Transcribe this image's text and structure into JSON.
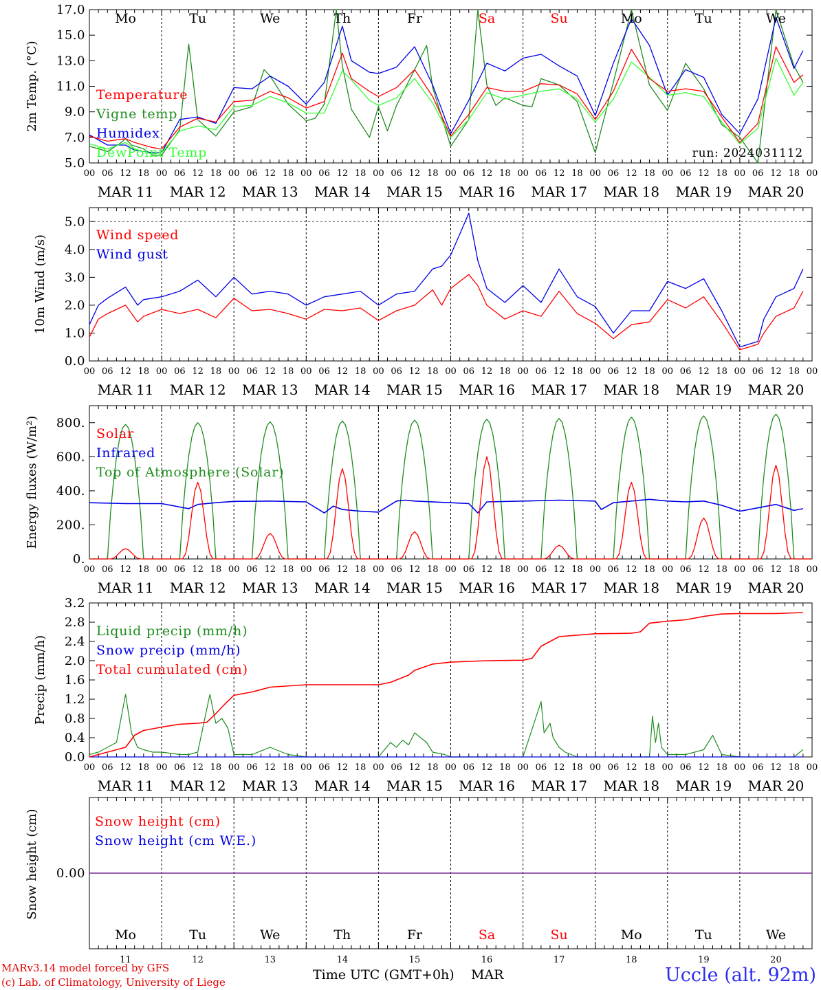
{
  "colors": {
    "red": "#ff0000",
    "green": "#1e8c1e",
    "blue": "#0000e6",
    "lightgreen": "#33ff33",
    "purple": "#7b2a9a",
    "axis": "#000000",
    "footer_red": "#e60000",
    "station_blue": "#2d2df0"
  },
  "days": {
    "dates": [
      "MAR 11",
      "MAR 12",
      "MAR 13",
      "MAR 14",
      "MAR 15",
      "MAR 16",
      "MAR 17",
      "MAR 18",
      "MAR 19",
      "MAR 20"
    ],
    "weekdays": [
      "Mo",
      "Tu",
      "We",
      "Th",
      "Fr",
      "Sa",
      "Su",
      "Mo",
      "Tu",
      "We"
    ],
    "weekend_index": [
      5,
      6
    ],
    "day_numbers": [
      "11",
      "12",
      "13",
      "14",
      "15",
      "16",
      "17",
      "18",
      "19",
      "20"
    ],
    "hour_labels": [
      "00",
      "06",
      "12",
      "18"
    ],
    "end_hour_label": "00"
  },
  "run_label": "run: 2024031112",
  "footer": {
    "model_line": "MARv3.14 model forced by GFS",
    "lab_line": "(c) Lab. of Climatology, University of Liege",
    "time_axis": "Time UTC (GMT+0h)",
    "month": "MAR",
    "station": "Uccle (alt. 92m)"
  },
  "chart_data": [
    {
      "type": "line",
      "ylabel": "2m Temp. (°C)",
      "ylim": [
        5.0,
        17.0
      ],
      "yticks": [
        "5.0",
        "7.0",
        "9.0",
        "11.0",
        "13.0",
        "15.0",
        "17.0"
      ],
      "x_unit": "hours since 2024-03-11 00 UTC",
      "legend": [
        "Temperature",
        "Vigne temp",
        "Humidex",
        "DewPoint Temp"
      ],
      "series": [
        {
          "name": "Temperature",
          "color": "red",
          "x": [
            0,
            6,
            12,
            15,
            21,
            24,
            30,
            36,
            42,
            48,
            54,
            60,
            66,
            72,
            78,
            84,
            87,
            93,
            96,
            102,
            108,
            114,
            120,
            126,
            132,
            138,
            144,
            150,
            156,
            162,
            168,
            174,
            180,
            186,
            192,
            198,
            204,
            210,
            216,
            222,
            228,
            234,
            237
          ],
          "y": [
            7.1,
            6.7,
            6.9,
            6.6,
            6.2,
            6.1,
            7.8,
            8.5,
            8.2,
            9.8,
            9.9,
            10.6,
            10.1,
            9.3,
            9.8,
            13.6,
            11.6,
            10.6,
            10.2,
            10.9,
            12.3,
            10.2,
            7.1,
            8.8,
            10.9,
            10.6,
            10.6,
            11.2,
            11.1,
            10.4,
            8.4,
            10.6,
            13.9,
            11.6,
            10.6,
            10.8,
            10.6,
            8.6,
            6.6,
            8.1,
            14.1,
            11.3,
            11.9
          ]
        },
        {
          "name": "Vigne temp",
          "color": "green",
          "x": [
            0,
            6,
            10,
            12,
            14,
            18,
            21,
            24,
            30,
            33,
            36,
            42,
            48,
            54,
            58,
            60,
            66,
            72,
            75,
            78,
            82,
            84,
            87,
            93,
            96,
            99,
            102,
            108,
            112,
            114,
            120,
            126,
            129,
            132,
            135,
            138,
            144,
            147,
            150,
            156,
            162,
            168,
            174,
            180,
            186,
            192,
            198,
            204,
            210,
            216,
            222,
            228,
            234,
            237
          ],
          "y": [
            6.3,
            5.9,
            6.5,
            6.9,
            6.4,
            6.1,
            5.6,
            5.6,
            7.6,
            14.3,
            8.4,
            7.1,
            9.0,
            9.4,
            12.3,
            11.8,
            9.6,
            8.3,
            8.5,
            9.6,
            17.0,
            12.6,
            9.2,
            7.0,
            9.4,
            7.5,
            9.5,
            12.3,
            14.2,
            10.9,
            6.3,
            8.4,
            17.0,
            11.1,
            9.5,
            10.1,
            9.5,
            9.4,
            11.6,
            11.1,
            9.8,
            5.8,
            11.3,
            17.0,
            11.1,
            9.1,
            12.8,
            10.8,
            8.0,
            7.0,
            5.0,
            17.0,
            12.6,
            11.3
          ]
        },
        {
          "name": "Humidex",
          "color": "blue",
          "x": [
            0,
            6,
            12,
            15,
            21,
            24,
            30,
            36,
            42,
            48,
            54,
            60,
            66,
            72,
            78,
            84,
            87,
            93,
            96,
            102,
            108,
            114,
            120,
            126,
            132,
            138,
            144,
            150,
            156,
            162,
            168,
            174,
            180,
            186,
            192,
            198,
            204,
            210,
            216,
            222,
            228,
            234,
            237
          ],
          "y": [
            7.2,
            6.4,
            6.4,
            6.0,
            5.8,
            5.8,
            8.4,
            8.6,
            8.1,
            10.9,
            10.8,
            11.8,
            11.0,
            9.6,
            11.3,
            15.7,
            13.0,
            12.1,
            12.0,
            12.5,
            14.1,
            11.1,
            7.3,
            9.9,
            12.8,
            12.2,
            13.2,
            13.5,
            12.6,
            11.8,
            8.7,
            12.8,
            16.3,
            14.2,
            10.3,
            12.3,
            11.7,
            8.8,
            7.3,
            10.0,
            16.4,
            12.4,
            13.8
          ]
        },
        {
          "name": "DewPoint Temp",
          "color": "lightgreen",
          "x": [
            0,
            6,
            12,
            15,
            21,
            24,
            30,
            36,
            42,
            48,
            54,
            60,
            66,
            72,
            78,
            84,
            87,
            93,
            96,
            102,
            108,
            114,
            120,
            126,
            132,
            138,
            144,
            150,
            156,
            162,
            168,
            174,
            180,
            186,
            192,
            198,
            204,
            210,
            216,
            222,
            228,
            234,
            237
          ],
          "y": [
            6.5,
            6.1,
            6.6,
            6.1,
            5.7,
            5.8,
            7.5,
            7.9,
            7.6,
            9.4,
            9.5,
            10.2,
            9.7,
            8.9,
            8.9,
            12.2,
            11.5,
            9.9,
            9.5,
            10.1,
            11.6,
            9.7,
            7.0,
            8.4,
            10.5,
            10.0,
            10.3,
            10.6,
            10.8,
            10.0,
            8.2,
            10.0,
            12.9,
            11.7,
            10.3,
            10.5,
            10.2,
            8.2,
            6.5,
            7.7,
            13.2,
            10.3,
            11.3
          ]
        }
      ]
    },
    {
      "type": "line",
      "ylabel": "10m Wind (m/s)",
      "ylim": [
        0.0,
        5.5
      ],
      "yticks": [
        "0.0",
        "1.0",
        "2.0",
        "3.0",
        "4.0",
        "5.0"
      ],
      "legend": [
        "Wind speed",
        "Wind gust"
      ],
      "series": [
        {
          "name": "Wind speed",
          "color": "red",
          "x": [
            0,
            3,
            6,
            12,
            16,
            18,
            24,
            30,
            36,
            42,
            48,
            54,
            60,
            66,
            72,
            78,
            84,
            90,
            96,
            102,
            108,
            114,
            117,
            120,
            126,
            129,
            132,
            138,
            144,
            150,
            156,
            162,
            168,
            174,
            180,
            186,
            192,
            198,
            204,
            210,
            216,
            222,
            224,
            228,
            234,
            237
          ],
          "y": [
            0.85,
            1.5,
            1.7,
            2.0,
            1.4,
            1.6,
            1.85,
            1.7,
            1.85,
            1.55,
            2.25,
            1.8,
            1.85,
            1.7,
            1.5,
            1.85,
            1.8,
            1.9,
            1.45,
            1.8,
            2.0,
            2.55,
            2.0,
            2.6,
            3.1,
            2.7,
            2.0,
            1.5,
            1.8,
            1.6,
            2.5,
            1.7,
            1.35,
            0.8,
            1.3,
            1.4,
            2.2,
            1.9,
            2.3,
            1.4,
            0.4,
            0.6,
            1.0,
            1.6,
            1.9,
            2.5
          ]
        },
        {
          "name": "Wind gust",
          "color": "blue",
          "x": [
            0,
            3,
            6,
            12,
            16,
            18,
            24,
            30,
            36,
            42,
            48,
            54,
            60,
            66,
            72,
            78,
            84,
            90,
            96,
            102,
            108,
            114,
            117,
            120,
            126,
            129,
            132,
            138,
            144,
            150,
            156,
            162,
            168,
            174,
            180,
            186,
            192,
            198,
            204,
            210,
            216,
            222,
            224,
            228,
            234,
            237
          ],
          "y": [
            1.3,
            2.0,
            2.25,
            2.65,
            2.0,
            2.2,
            2.3,
            2.5,
            2.9,
            2.3,
            3.0,
            2.4,
            2.5,
            2.4,
            2.0,
            2.3,
            2.4,
            2.5,
            2.0,
            2.4,
            2.5,
            3.3,
            3.4,
            3.8,
            5.3,
            3.6,
            2.6,
            2.1,
            2.7,
            2.1,
            3.3,
            2.3,
            1.95,
            1.0,
            1.8,
            1.8,
            2.85,
            2.6,
            2.95,
            1.8,
            0.5,
            0.7,
            1.5,
            2.3,
            2.6,
            3.3
          ]
        }
      ],
      "reference_line": 5.0
    },
    {
      "type": "line",
      "ylabel": "Energy fluxes (W/m²)",
      "ylim": [
        0,
        900
      ],
      "yticks": [
        "0.",
        "200.",
        "400.",
        "600.",
        "800."
      ],
      "legend": [
        "Solar",
        "Infrared",
        "Top of Atmosphere (Solar)"
      ],
      "toa_peaks": [
        790,
        800,
        805,
        810,
        815,
        820,
        825,
        832,
        840,
        850
      ],
      "solar_peaks": [
        60,
        450,
        150,
        530,
        160,
        600,
        80,
        450,
        240,
        550
      ],
      "series_note": "Solar and TOA are diurnal curves built from the daily peaks (sunrise ~06h, sunset ~18h)",
      "series": [
        {
          "name": "Infrared",
          "color": "blue",
          "x": [
            0,
            12,
            24,
            33,
            36,
            42,
            48,
            60,
            72,
            78,
            81,
            84,
            90,
            96,
            102,
            105,
            108,
            120,
            126,
            129,
            132,
            144,
            156,
            168,
            170,
            174,
            180,
            186,
            192,
            198,
            204,
            210,
            216,
            222,
            228,
            234,
            237
          ],
          "y": [
            330,
            325,
            325,
            295,
            320,
            330,
            338,
            340,
            335,
            270,
            310,
            290,
            280,
            275,
            340,
            345,
            340,
            330,
            325,
            270,
            335,
            340,
            345,
            340,
            290,
            330,
            340,
            350,
            340,
            335,
            340,
            315,
            280,
            300,
            320,
            285,
            295
          ]
        }
      ]
    },
    {
      "type": "line",
      "ylabel": "Precip (mm/h)",
      "ylim": [
        0.0,
        3.2
      ],
      "yticks": [
        "0.0",
        "0.4",
        "0.8",
        "1.2",
        "1.6",
        "2.0",
        "2.4",
        "2.8",
        "3.2"
      ],
      "legend": [
        "Liquid precip (mm/h)",
        "Snow precip (mm/h)",
        "Total cumulated (cm)"
      ],
      "series": [
        {
          "name": "Liquid precip (mm/h)",
          "color": "green",
          "x": [
            0,
            3,
            6,
            9,
            12,
            14,
            16,
            18,
            21,
            24,
            30,
            33,
            36,
            40,
            42,
            44,
            46,
            48,
            54,
            60,
            66,
            72,
            96,
            100,
            102,
            104,
            106,
            108,
            110,
            112,
            114,
            118,
            120,
            126,
            144,
            150,
            151,
            153,
            154,
            156,
            158,
            160,
            162,
            168,
            186,
            187,
            188,
            189,
            190,
            192,
            198,
            204,
            207,
            210,
            216,
            234,
            237
          ],
          "y": [
            0.05,
            0.1,
            0.2,
            0.3,
            1.3,
            0.5,
            0.2,
            0.15,
            0.1,
            0.1,
            0.05,
            0.05,
            0.1,
            1.3,
            0.7,
            0.8,
            0.6,
            0.05,
            0.05,
            0.2,
            0.05,
            0.0,
            0.0,
            0.3,
            0.2,
            0.35,
            0.25,
            0.5,
            0.4,
            0.3,
            0.1,
            0.05,
            0.0,
            0.0,
            0.0,
            1.15,
            0.5,
            0.7,
            0.4,
            0.2,
            0.1,
            0.05,
            0.0,
            0.0,
            0.0,
            0.85,
            0.3,
            0.7,
            0.2,
            0.05,
            0.05,
            0.15,
            0.45,
            0.05,
            0.0,
            0.0,
            0.15
          ]
        },
        {
          "name": "Snow precip (mm/h)",
          "color": "blue",
          "x": [
            0,
            237
          ],
          "y": [
            0.0,
            0.0
          ]
        },
        {
          "name": "Total cumulated (cm)",
          "color": "red",
          "x": [
            0,
            6,
            12,
            15,
            18,
            24,
            30,
            36,
            39,
            42,
            45,
            48,
            54,
            60,
            72,
            96,
            100,
            106,
            108,
            114,
            120,
            132,
            144,
            147,
            150,
            156,
            168,
            180,
            183,
            186,
            192,
            198,
            204,
            210,
            216,
            228,
            237
          ],
          "y": [
            0.0,
            0.1,
            0.2,
            0.45,
            0.55,
            0.62,
            0.68,
            0.7,
            0.72,
            0.9,
            1.1,
            1.28,
            1.35,
            1.45,
            1.5,
            1.5,
            1.55,
            1.7,
            1.8,
            1.93,
            1.97,
            2.0,
            2.01,
            2.05,
            2.3,
            2.5,
            2.56,
            2.57,
            2.6,
            2.78,
            2.82,
            2.85,
            2.92,
            2.97,
            2.98,
            2.98,
            3.0
          ]
        }
      ]
    },
    {
      "type": "line",
      "ylabel": "Snow height (cm)",
      "yticks": [
        "0.00"
      ],
      "legend": [
        "Snow height (cm)",
        "Snow height (cm W.E.)"
      ],
      "series": [
        {
          "name": "Snow height (cm)",
          "color": "red",
          "x": [
            0,
            240
          ],
          "y": [
            0.0,
            0.0
          ]
        },
        {
          "name": "Snow height (cm W.E.)",
          "color": "blue",
          "x": [
            0,
            240
          ],
          "y": [
            0.0,
            0.0
          ]
        }
      ]
    }
  ]
}
